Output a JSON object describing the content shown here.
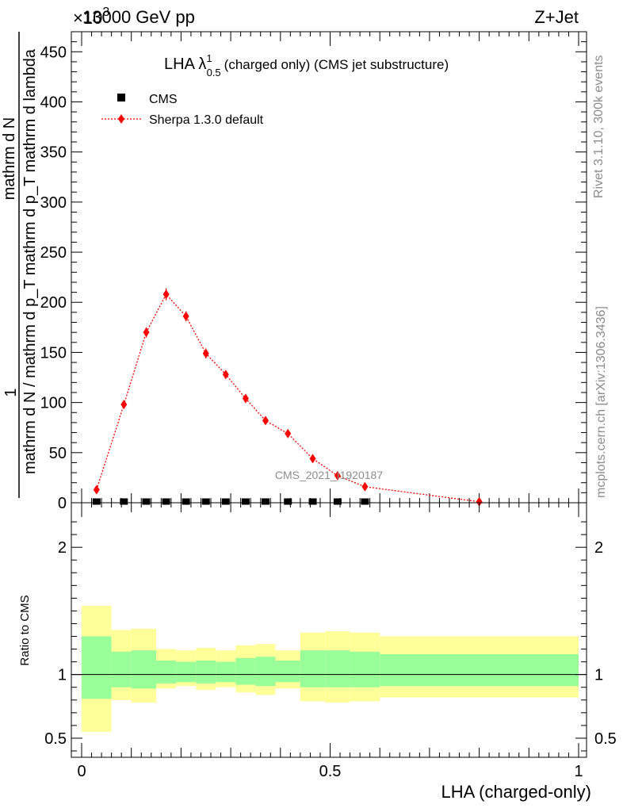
{
  "header": {
    "left_exponent": "×10",
    "left_exponent_power": "3",
    "left_title": "13000 GeV pp",
    "right_title": "Z+Jet"
  },
  "plot_title": {
    "main": "LHA λ",
    "sup": "1",
    "sub": "0.5",
    "tail": "(charged only) (CMS jet substructure)"
  },
  "side_labels": {
    "rivet": "Rivet 3.1.10,  300k events",
    "mcplots": "mcplots.cern.ch [arXiv:1306.3436]"
  },
  "watermark": "CMS_2021_I1920187",
  "y_axis_label": {
    "numerator": "1",
    "denominator": "mathrm d N / mathrm d p_T mathrm d p_T mathrm d lambda",
    "upper": "mathrm d N"
  },
  "ratio_axis_label": "Ratio to CMS",
  "x_axis_label": "LHA (charged-only)",
  "colors": {
    "sherpa": "#ff0000",
    "band_inner": "#99ff99",
    "band_outer": "#ffff99",
    "cms": "#000000"
  },
  "chart_data": [
    {
      "type": "line",
      "panel": "main",
      "xlim": [
        0,
        1
      ],
      "ylim": [
        0,
        470
      ],
      "y_ticks": [
        0,
        50,
        100,
        150,
        200,
        250,
        300,
        350,
        400,
        450
      ],
      "y_tick_labels": [
        "0",
        "50",
        "100",
        "150",
        "200",
        "250",
        "300",
        "350",
        "400",
        "450"
      ],
      "x_ticks": [
        0,
        0.5,
        1
      ],
      "x_tick_labels": [
        "0",
        "0.5",
        "1"
      ],
      "legend_position": "top-left",
      "series": [
        {
          "name": "CMS",
          "marker": "square",
          "x": [
            0.03,
            0.085,
            0.13,
            0.17,
            0.21,
            0.25,
            0.29,
            0.33,
            0.37,
            0.415,
            0.465,
            0.515,
            0.57
          ],
          "values": [
            0.4,
            0.4,
            0.4,
            0.4,
            0.4,
            0.4,
            0.4,
            0.4,
            0.4,
            0.4,
            0.4,
            0.4,
            0.4
          ]
        },
        {
          "name": "Sherpa 1.3.0 default",
          "marker": "diamond",
          "line": "dotted",
          "x": [
            0.03,
            0.085,
            0.13,
            0.17,
            0.21,
            0.25,
            0.29,
            0.33,
            0.37,
            0.415,
            0.465,
            0.515,
            0.57,
            0.8
          ],
          "values": [
            13,
            98,
            170,
            208,
            186,
            149,
            128,
            104,
            82,
            69,
            44,
            27,
            16,
            1
          ],
          "errors": [
            3,
            4,
            5,
            6,
            5,
            5,
            4,
            4,
            3,
            3,
            3,
            2,
            2,
            1
          ]
        }
      ]
    },
    {
      "type": "area",
      "panel": "ratio",
      "xlim": [
        0,
        1
      ],
      "ylim": [
        0.35,
        2.35
      ],
      "y_ticks": [
        0.5,
        1,
        2
      ],
      "y_tick_labels": [
        "0.5",
        "1",
        "2"
      ],
      "x_ticks": [
        0,
        0.5,
        1
      ],
      "x_tick_labels": [
        "0",
        "0.5",
        "1"
      ],
      "bins": [
        0,
        0.06,
        0.1,
        0.15,
        0.19,
        0.23,
        0.27,
        0.31,
        0.35,
        0.39,
        0.44,
        0.49,
        0.54,
        0.6,
        1.0
      ],
      "inner_band": {
        "low": [
          0.81,
          0.9,
          0.89,
          0.93,
          0.94,
          0.93,
          0.94,
          0.92,
          0.91,
          0.94,
          0.9,
          0.9,
          0.9,
          0.91
        ],
        "high": [
          1.3,
          1.18,
          1.19,
          1.11,
          1.1,
          1.11,
          1.1,
          1.13,
          1.14,
          1.11,
          1.19,
          1.19,
          1.18,
          1.16
        ]
      },
      "outer_band": {
        "low": [
          0.55,
          0.8,
          0.78,
          0.89,
          0.91,
          0.88,
          0.9,
          0.86,
          0.84,
          0.89,
          0.79,
          0.78,
          0.79,
          0.82
        ],
        "high": [
          1.54,
          1.35,
          1.36,
          1.2,
          1.19,
          1.21,
          1.19,
          1.23,
          1.24,
          1.19,
          1.33,
          1.34,
          1.33,
          1.3
        ]
      },
      "reference_line": 1
    }
  ]
}
